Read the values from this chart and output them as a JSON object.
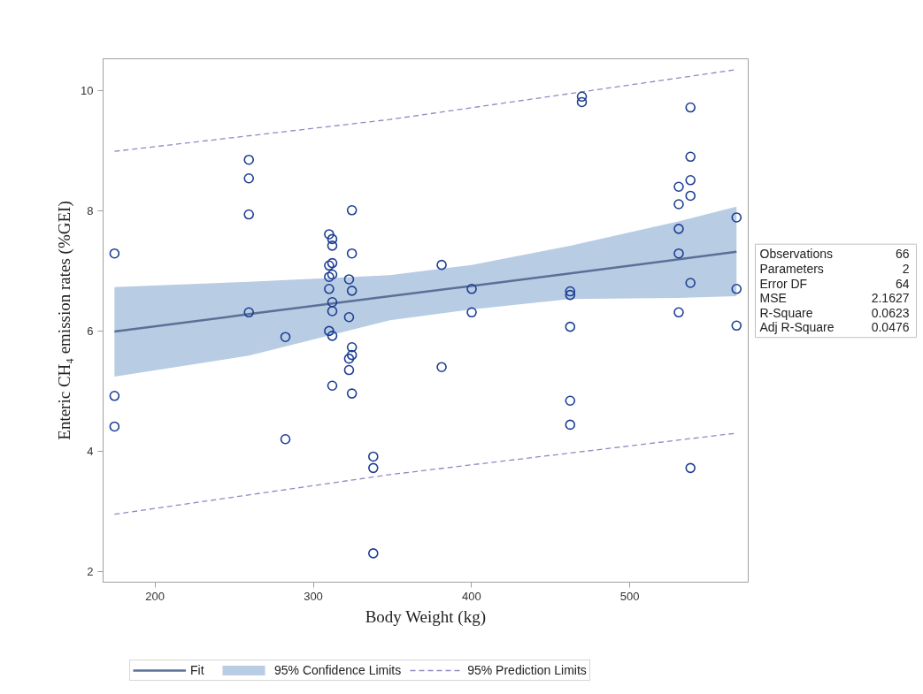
{
  "chart_data": {
    "type": "scatter",
    "xlabel": "Body Weight (kg)",
    "ylabel": "Enteric CH₄ emission rates (%GEI)",
    "xlim": [
      167.2,
      574.8
    ],
    "ylim": [
      1.82,
      10.53
    ],
    "xticks": [
      200,
      300,
      400,
      500
    ],
    "yticks": [
      2,
      4,
      6,
      8,
      10
    ],
    "grid": false,
    "legend": "bottom",
    "annotations": [
      "Observations 66",
      "Parameters 2",
      "Error DF 64",
      "MSE 2.1627",
      "R-Square 0.0623",
      "Adj R-Square 0.0476"
    ],
    "series": [
      {
        "type": "line",
        "name": "Fit",
        "color": "#5b7097",
        "line_style": "solid",
        "x": [
          174.4,
          259.3,
          348.4,
          400,
          462.3,
          530,
          567.4
        ],
        "values": [
          5.99,
          6.28,
          6.58,
          6.75,
          6.96,
          7.19,
          7.32
        ],
        "lower": [
          5.24,
          5.59,
          6.18,
          6.36,
          6.53,
          6.55,
          6.58
        ],
        "upper": [
          6.73,
          6.82,
          6.93,
          7.1,
          7.42,
          7.82,
          8.07
        ]
      },
      {
        "type": "area",
        "name": "95% Confidence Limits",
        "color": "#b8cce4"
      },
      {
        "type": "line",
        "name": "95% Prediction Limits",
        "color": "#8c8cc4",
        "line_style": "dashed",
        "x": [
          174.4,
          348.4,
          567.4
        ],
        "values": [
          8.99,
          9.52,
          10.35
        ]
      },
      {
        "type": "line",
        "color": "#8c8cc4",
        "line_style": "dashed",
        "x": [
          174.4,
          348.4,
          567.4
        ],
        "values": [
          2.95,
          3.61,
          4.3
        ]
      },
      {
        "color": "#1c3f94",
        "marker": "circle",
        "x": [
          174.4,
          174.4,
          174.4,
          259.3,
          259.3,
          259.3,
          259.3,
          282.4,
          282.4,
          310,
          312,
          312,
          312,
          310,
          312,
          310,
          310,
          312,
          312,
          310,
          312,
          312,
          324.4,
          324.4,
          322.6,
          324.4,
          322.6,
          324.4,
          324.4,
          322.6,
          322.6,
          324.4,
          337.9,
          337.9,
          337.9,
          381.1,
          381.1,
          400.1,
          400.1,
          462.3,
          462.3,
          462.3,
          462.3,
          462.3,
          469.7,
          469.7,
          538.3,
          538.3,
          538.3,
          530.9,
          538.3,
          530.9,
          530.9,
          530.9,
          538.3,
          530.9,
          538.3,
          567.4,
          567.4,
          567.4
        ],
        "values": [
          7.29,
          4.92,
          4.41,
          8.85,
          8.54,
          7.94,
          6.31,
          5.9,
          4.2,
          7.61,
          7.53,
          7.42,
          7.13,
          7.09,
          6.94,
          6.9,
          6.7,
          6.48,
          6.33,
          6.0,
          5.92,
          5.09,
          8.01,
          7.29,
          6.86,
          6.67,
          6.23,
          5.73,
          5.6,
          5.54,
          5.35,
          4.96,
          3.91,
          3.72,
          2.3,
          7.1,
          5.4,
          6.7,
          6.31,
          6.66,
          6.6,
          6.07,
          4.84,
          4.44,
          9.9,
          9.81,
          9.72,
          8.9,
          8.51,
          8.4,
          8.25,
          8.11,
          7.7,
          7.29,
          6.8,
          6.31,
          3.72,
          7.89,
          6.7,
          6.09
        ]
      }
    ]
  }
}
